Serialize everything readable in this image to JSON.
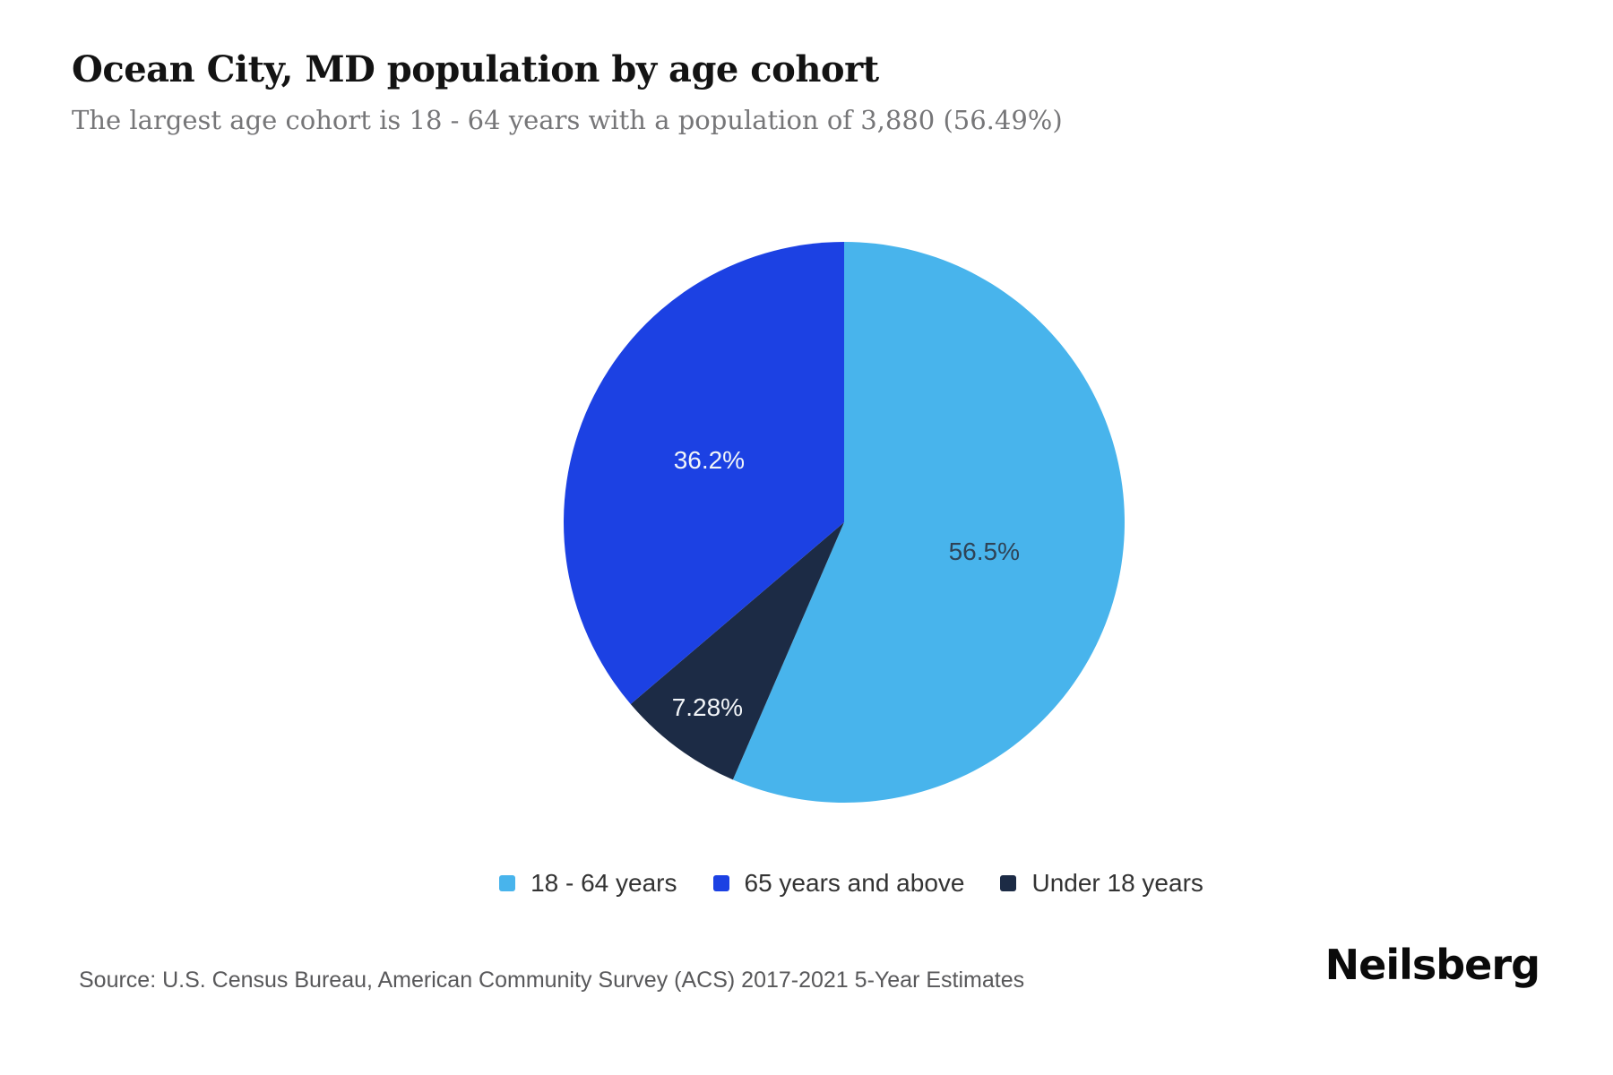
{
  "header": {
    "title": "Ocean City, MD population by age cohort",
    "subtitle": "The largest age cohort is 18 - 64 years with a population of 3,880 (56.49%)"
  },
  "chart_data": {
    "type": "pie",
    "title": "Ocean City, MD population by age cohort",
    "units": "percent of population",
    "start_angle_deg_from_top": 0,
    "direction": "clockwise",
    "legend_position": "bottom-center",
    "slices": [
      {
        "label": "18 - 64 years",
        "value": 56.49,
        "display": "56.5%",
        "color": "#48b4ec",
        "label_color": "#2f4356",
        "label_r": 0.51
      },
      {
        "label": "Under 18 years",
        "value": 7.28,
        "display": "7.28%",
        "color": "#1c2b45",
        "label_color": "#f2f5f8",
        "label_r": 0.82
      },
      {
        "label": "65 years and above",
        "value": 36.23,
        "display": "36.2%",
        "color": "#1c41e3",
        "label_color": "#f2f5f8",
        "label_r": 0.53
      }
    ],
    "highlight": {
      "largest_cohort": "18 - 64 years",
      "population": "3,880",
      "share": "56.49%"
    }
  },
  "footer": {
    "source": "Source: U.S. Census Bureau, American Community Survey (ACS) 2017-2021 5-Year Estimates",
    "brand": "Neilsberg"
  }
}
